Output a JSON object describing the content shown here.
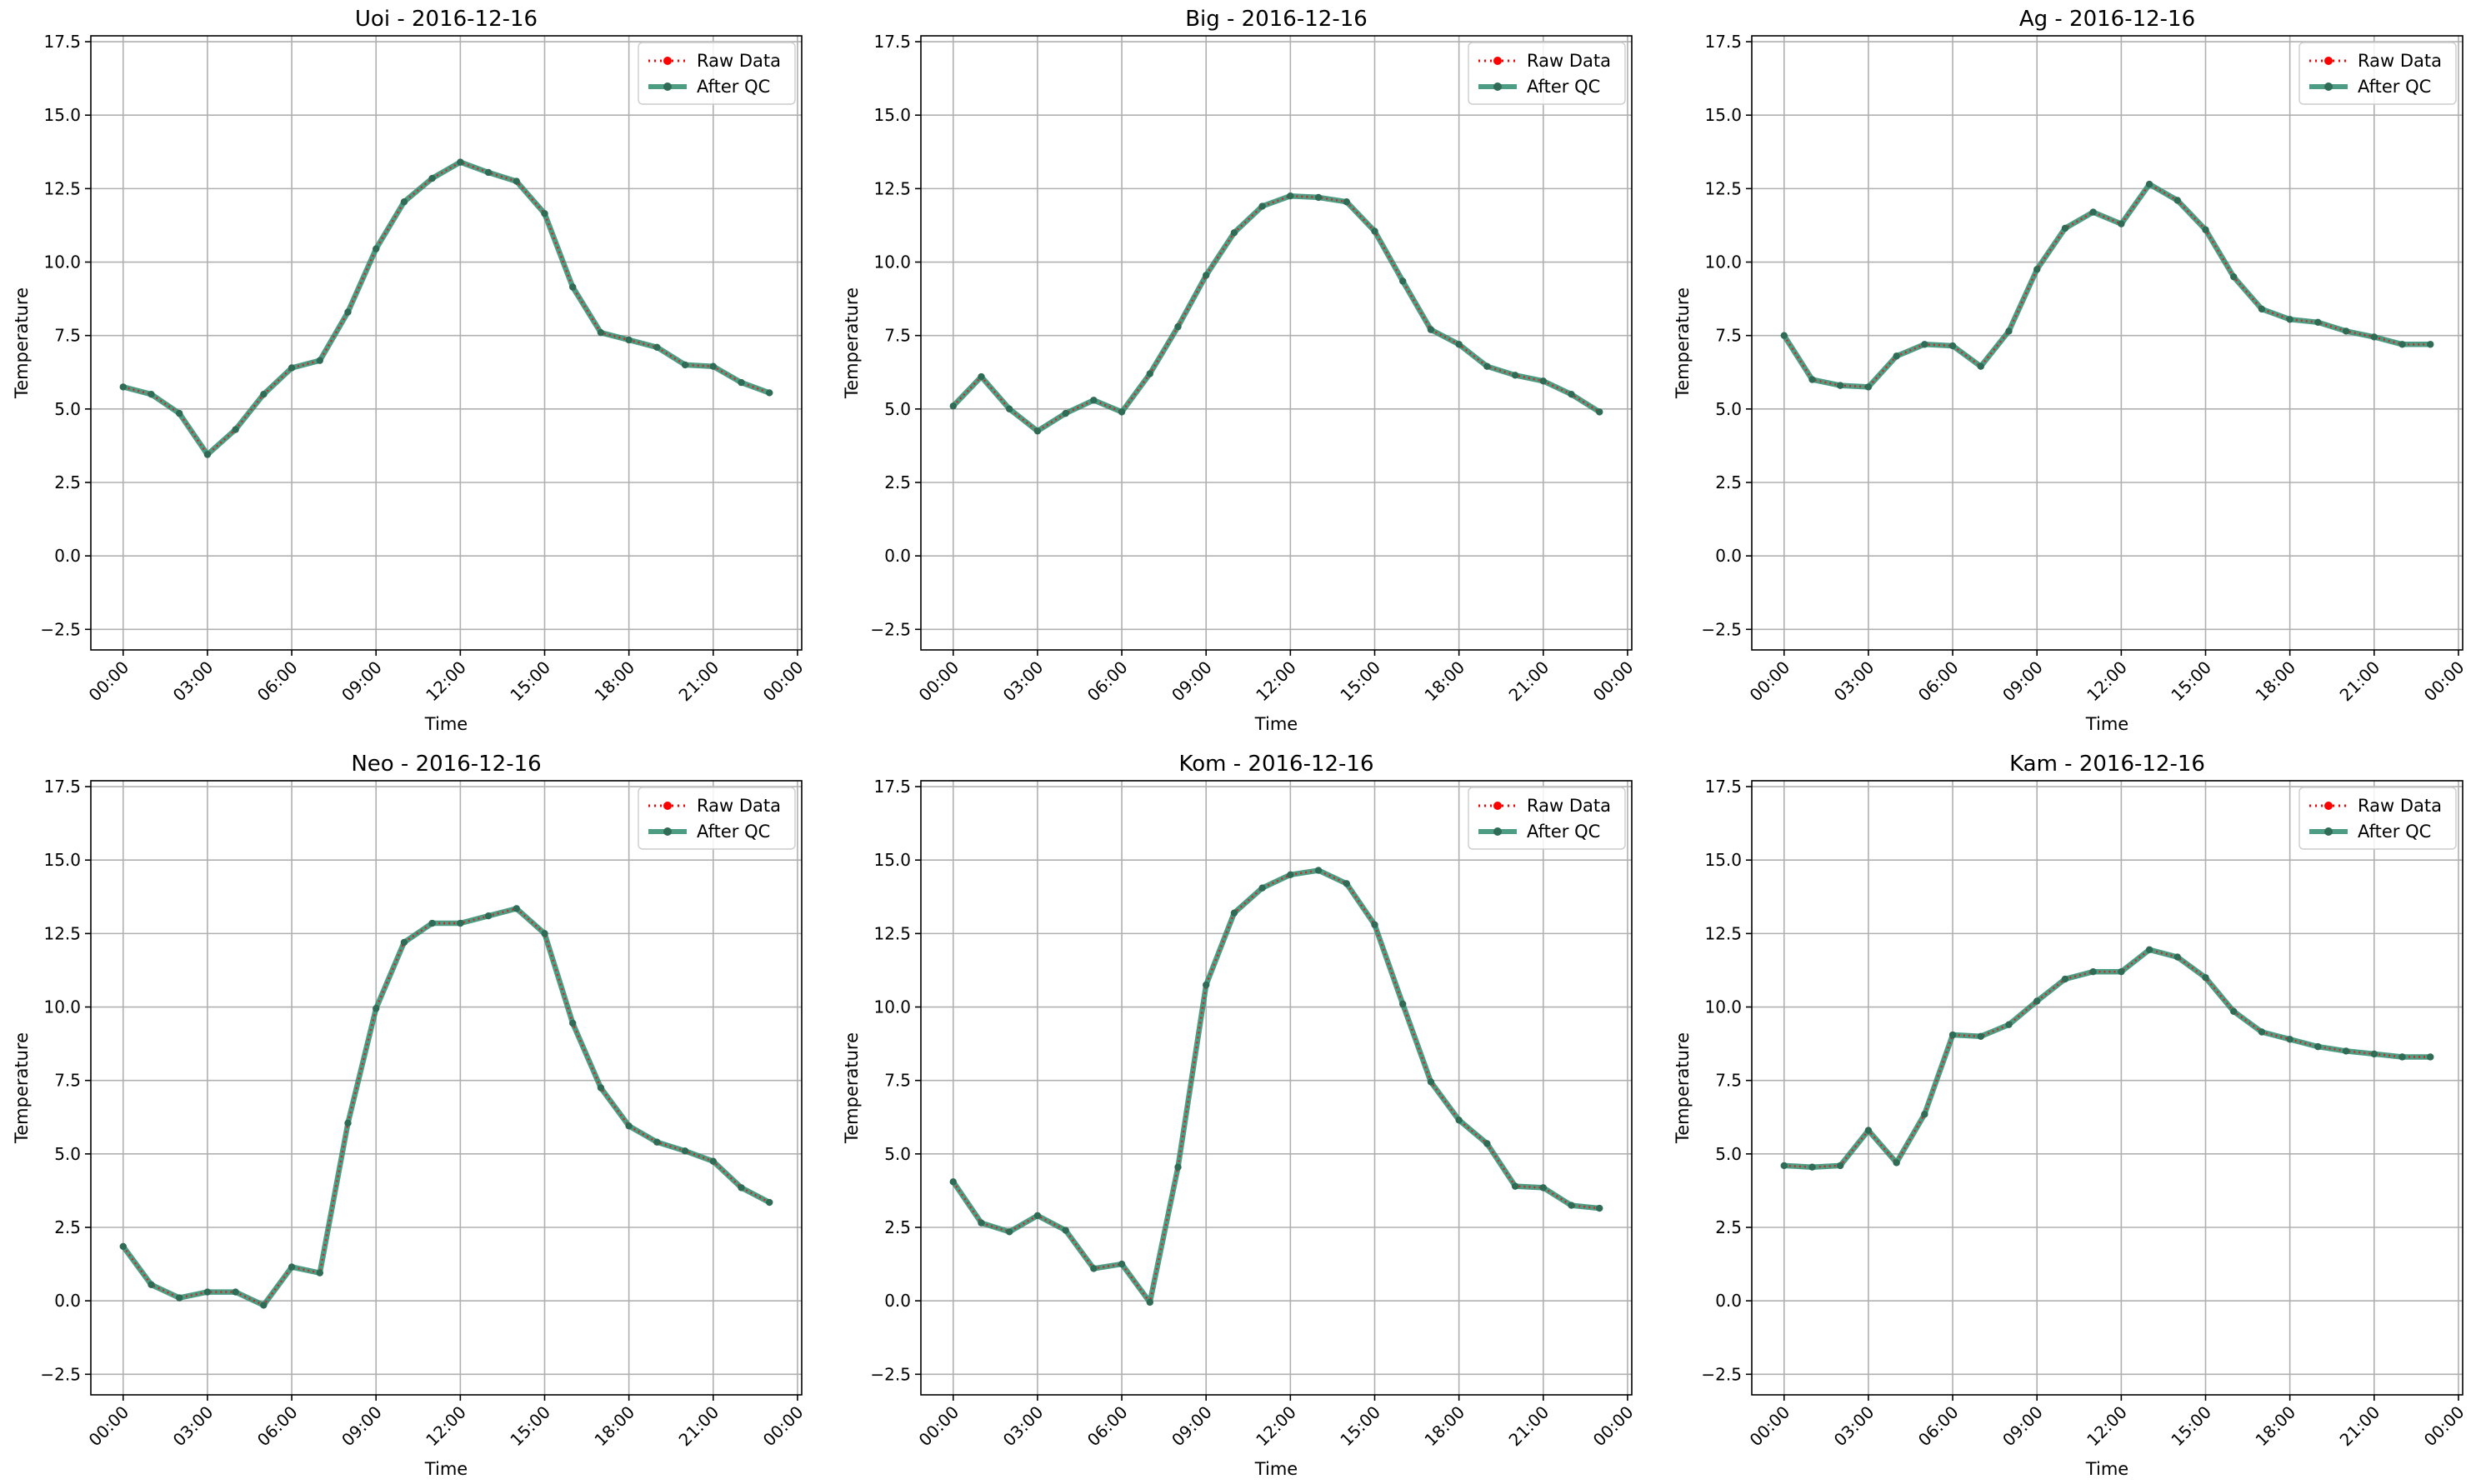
{
  "chart_data": [
    {
      "type": "line",
      "title": "Uoi - 2016-12-16",
      "xlabel": "Time",
      "ylabel": "Temperature",
      "x_hours": [
        0,
        1,
        2,
        3,
        4,
        5,
        6,
        7,
        8,
        9,
        10,
        11,
        12,
        13,
        14,
        15,
        16,
        17,
        18,
        19,
        20,
        21,
        22,
        23
      ],
      "series": [
        {
          "name": "Raw Data",
          "color": "#ff0000",
          "values": [
            5.75,
            5.5,
            4.85,
            3.45,
            4.3,
            5.5,
            6.4,
            6.65,
            8.3,
            10.45,
            12.05,
            12.85,
            13.4,
            13.05,
            12.75,
            11.65,
            9.15,
            7.6,
            7.35,
            7.1,
            6.5,
            6.45,
            5.9,
            5.55
          ]
        },
        {
          "name": "After QC",
          "color": "#2e8b6e",
          "values": [
            5.75,
            5.5,
            4.85,
            3.45,
            4.3,
            5.5,
            6.4,
            6.65,
            8.3,
            10.45,
            12.05,
            12.85,
            13.4,
            13.05,
            12.75,
            11.65,
            9.15,
            7.6,
            7.35,
            7.1,
            6.5,
            6.45,
            5.9,
            5.55
          ]
        }
      ]
    },
    {
      "type": "line",
      "title": "Big - 2016-12-16",
      "xlabel": "Time",
      "ylabel": "Temperature",
      "x_hours": [
        0,
        1,
        2,
        3,
        4,
        5,
        6,
        7,
        8,
        9,
        10,
        11,
        12,
        13,
        14,
        15,
        16,
        17,
        18,
        19,
        20,
        21,
        22,
        23
      ],
      "series": [
        {
          "name": "Raw Data",
          "color": "#ff0000",
          "values": [
            5.1,
            6.1,
            5.0,
            4.25,
            4.85,
            5.3,
            4.9,
            6.2,
            7.8,
            9.55,
            11.0,
            11.9,
            12.25,
            12.2,
            12.05,
            11.05,
            9.35,
            7.7,
            7.2,
            6.45,
            6.15,
            5.95,
            5.5,
            4.9
          ]
        },
        {
          "name": "After QC",
          "color": "#2e8b6e",
          "values": [
            5.1,
            6.1,
            5.0,
            4.25,
            4.85,
            5.3,
            4.9,
            6.2,
            7.8,
            9.55,
            11.0,
            11.9,
            12.25,
            12.2,
            12.05,
            11.05,
            9.35,
            7.7,
            7.2,
            6.45,
            6.15,
            5.95,
            5.5,
            4.9
          ]
        }
      ]
    },
    {
      "type": "line",
      "title": "Ag - 2016-12-16",
      "xlabel": "Time",
      "ylabel": "Temperature",
      "x_hours": [
        0,
        1,
        2,
        3,
        4,
        5,
        6,
        7,
        8,
        9,
        10,
        11,
        12,
        13,
        14,
        15,
        16,
        17,
        18,
        19,
        20,
        21,
        22,
        23
      ],
      "series": [
        {
          "name": "Raw Data",
          "color": "#ff0000",
          "values": [
            7.5,
            6.0,
            5.8,
            5.75,
            6.8,
            7.2,
            7.15,
            6.45,
            7.65,
            9.75,
            11.15,
            11.7,
            11.3,
            12.65,
            12.1,
            11.1,
            9.5,
            8.4,
            8.05,
            7.95,
            7.65,
            7.45,
            7.2,
            7.2
          ]
        },
        {
          "name": "After QC",
          "color": "#2e8b6e",
          "values": [
            7.5,
            6.0,
            5.8,
            5.75,
            6.8,
            7.2,
            7.15,
            6.45,
            7.65,
            9.75,
            11.15,
            11.7,
            11.3,
            12.65,
            12.1,
            11.1,
            9.5,
            8.4,
            8.05,
            7.95,
            7.65,
            7.45,
            7.2,
            7.2
          ]
        }
      ]
    },
    {
      "type": "line",
      "title": "Neo - 2016-12-16",
      "xlabel": "Time",
      "ylabel": "Temperature",
      "x_hours": [
        0,
        1,
        2,
        3,
        4,
        5,
        6,
        7,
        8,
        9,
        10,
        11,
        12,
        13,
        14,
        15,
        16,
        17,
        18,
        19,
        20,
        21,
        22,
        23
      ],
      "series": [
        {
          "name": "Raw Data",
          "color": "#ff0000",
          "values": [
            1.85,
            0.55,
            0.1,
            0.3,
            0.3,
            -0.15,
            1.15,
            0.95,
            6.05,
            9.95,
            12.2,
            12.85,
            12.85,
            13.1,
            13.35,
            12.5,
            9.45,
            7.25,
            5.95,
            5.4,
            5.1,
            4.75,
            3.85,
            3.35
          ]
        },
        {
          "name": "After QC",
          "color": "#2e8b6e",
          "values": [
            1.85,
            0.55,
            0.1,
            0.3,
            0.3,
            -0.15,
            1.15,
            0.95,
            6.05,
            9.95,
            12.2,
            12.85,
            12.85,
            13.1,
            13.35,
            12.5,
            9.45,
            7.25,
            5.95,
            5.4,
            5.1,
            4.75,
            3.85,
            3.35
          ]
        }
      ]
    },
    {
      "type": "line",
      "title": "Kom - 2016-12-16",
      "xlabel": "Time",
      "ylabel": "Temperature",
      "x_hours": [
        0,
        1,
        2,
        3,
        4,
        5,
        6,
        7,
        8,
        9,
        10,
        11,
        12,
        13,
        14,
        15,
        16,
        17,
        18,
        19,
        20,
        21,
        22,
        23
      ],
      "series": [
        {
          "name": "Raw Data",
          "color": "#ff0000",
          "values": [
            4.05,
            2.65,
            2.35,
            2.9,
            2.4,
            1.1,
            1.25,
            -0.05,
            4.55,
            10.75,
            13.2,
            14.05,
            14.5,
            14.65,
            14.2,
            12.8,
            10.1,
            7.45,
            6.15,
            5.35,
            3.9,
            3.85,
            3.25,
            3.15
          ]
        },
        {
          "name": "After QC",
          "color": "#2e8b6e",
          "values": [
            4.05,
            2.65,
            2.35,
            2.9,
            2.4,
            1.1,
            1.25,
            -0.05,
            4.55,
            10.75,
            13.2,
            14.05,
            14.5,
            14.65,
            14.2,
            12.8,
            10.1,
            7.45,
            6.15,
            5.35,
            3.9,
            3.85,
            3.25,
            3.15
          ]
        }
      ]
    },
    {
      "type": "line",
      "title": "Kam - 2016-12-16",
      "xlabel": "Time",
      "ylabel": "Temperature",
      "x_hours": [
        0,
        1,
        2,
        3,
        4,
        5,
        6,
        7,
        8,
        9,
        10,
        11,
        12,
        13,
        14,
        15,
        16,
        17,
        18,
        19,
        20,
        21,
        22,
        23
      ],
      "series": [
        {
          "name": "Raw Data",
          "color": "#ff0000",
          "values": [
            4.6,
            4.55,
            4.6,
            5.8,
            4.7,
            6.35,
            9.05,
            9.0,
            9.4,
            10.2,
            10.95,
            11.2,
            11.2,
            11.95,
            11.7,
            11.0,
            9.85,
            9.15,
            8.9,
            8.65,
            8.5,
            8.4,
            8.3,
            8.3
          ]
        },
        {
          "name": "After QC",
          "color": "#2e8b6e",
          "values": [
            4.6,
            4.55,
            4.6,
            5.8,
            4.7,
            6.35,
            9.05,
            9.0,
            9.4,
            10.2,
            10.95,
            11.2,
            11.2,
            11.95,
            11.7,
            11.0,
            9.85,
            9.15,
            8.9,
            8.65,
            8.5,
            8.4,
            8.3,
            8.3
          ]
        }
      ]
    }
  ],
  "axes": {
    "ylim": [
      -3.2,
      17.7
    ],
    "yticks": [
      -2.5,
      0.0,
      2.5,
      5.0,
      7.5,
      10.0,
      12.5,
      15.0,
      17.5
    ],
    "xlim_hours": [
      -1.15,
      24.15
    ],
    "xticks_hours": [
      0,
      3,
      6,
      9,
      12,
      15,
      18,
      21,
      24
    ],
    "xtick_labels": [
      "00:00",
      "03:00",
      "06:00",
      "09:00",
      "12:00",
      "15:00",
      "18:00",
      "21:00",
      "00:00"
    ],
    "grid": true,
    "legend_position": "top-right",
    "xtick_rotation_deg": 45
  },
  "style": {
    "grid_color": "#b0b0b0",
    "spine_color": "#000000",
    "qc_line_color": "#2e8b6e",
    "raw_line_color": "#ff0000",
    "marker_color": "#2f6b55"
  }
}
